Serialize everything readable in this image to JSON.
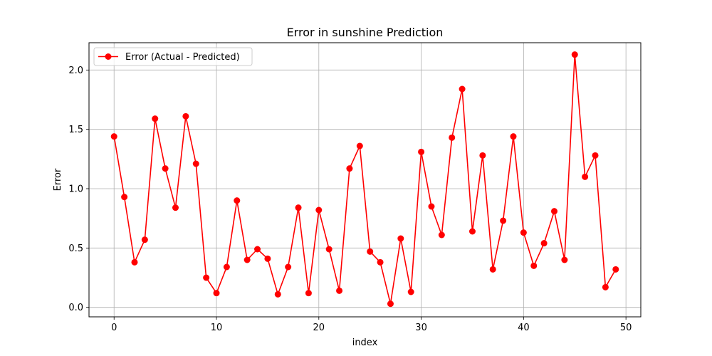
{
  "chart_data": {
    "type": "line",
    "title": "Error in sunshine Prediction",
    "xlabel": "index",
    "ylabel": "Error",
    "xlim": [
      -2.45,
      51.45
    ],
    "ylim": [
      -0.08,
      2.23
    ],
    "xticks": [
      0,
      10,
      20,
      30,
      40,
      50
    ],
    "yticks": [
      0.0,
      0.5,
      1.0,
      1.5,
      2.0
    ],
    "xtick_labels": [
      "0",
      "10",
      "20",
      "30",
      "40",
      "50"
    ],
    "ytick_labels": [
      "0.0",
      "0.5",
      "1.0",
      "1.5",
      "2.0"
    ],
    "grid": true,
    "legend_position": "upper-left",
    "colors": {
      "series": "#ff0000",
      "grid": "#b0b0b0"
    },
    "series": [
      {
        "name": "Error (Actual - Predicted)",
        "marker": "circle",
        "x": [
          0,
          1,
          2,
          3,
          4,
          5,
          6,
          7,
          8,
          9,
          10,
          11,
          12,
          13,
          14,
          15,
          16,
          17,
          18,
          19,
          20,
          21,
          22,
          23,
          24,
          25,
          26,
          27,
          28,
          29,
          30,
          31,
          32,
          33,
          34,
          35,
          36,
          37,
          38,
          39,
          40,
          41,
          42,
          43,
          44,
          45,
          46,
          47,
          48,
          49
        ],
        "values": [
          1.44,
          0.93,
          0.38,
          0.57,
          1.59,
          1.17,
          0.84,
          1.61,
          1.21,
          0.25,
          0.12,
          0.34,
          0.9,
          0.4,
          0.49,
          0.41,
          0.11,
          0.34,
          0.84,
          0.12,
          0.82,
          0.49,
          0.14,
          1.17,
          1.36,
          0.47,
          0.38,
          0.03,
          0.58,
          0.13,
          1.31,
          0.85,
          0.61,
          1.43,
          1.84,
          0.64,
          1.28,
          0.32,
          0.73,
          1.44,
          0.63,
          0.35,
          0.54,
          0.81,
          0.4,
          2.13,
          1.1,
          1.28,
          0.17,
          0.32
        ]
      }
    ]
  }
}
